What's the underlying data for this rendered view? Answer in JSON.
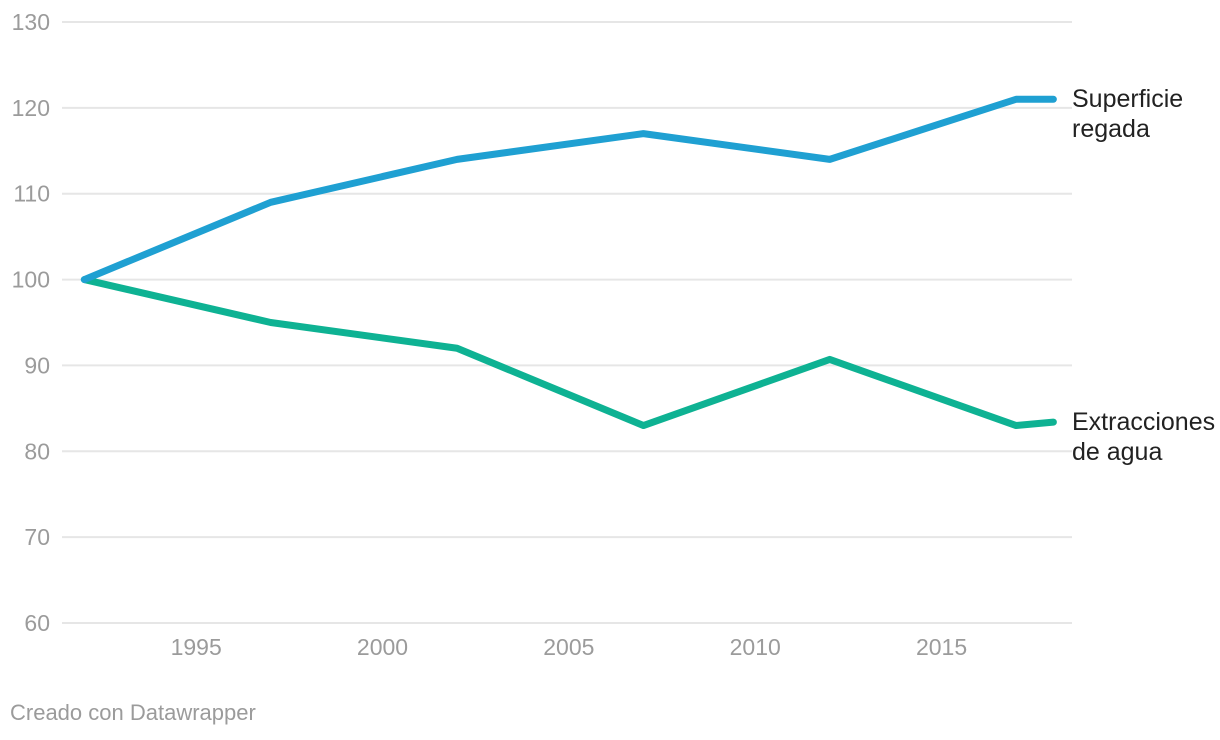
{
  "chart_data": {
    "type": "line",
    "x": [
      1992,
      1997,
      2002,
      2007,
      2012,
      2017,
      2018
    ],
    "series": [
      {
        "name": "Superficie regada",
        "color": "#1fa0d2",
        "values": [
          100,
          109,
          114,
          117,
          114,
          121,
          121
        ]
      },
      {
        "name": "Extracciones de agua",
        "color": "#0eb293",
        "values": [
          100,
          95,
          92,
          83,
          90.7,
          83,
          83.4
        ]
      }
    ],
    "xticks": [
      1995,
      2000,
      2005,
      2010,
      2015
    ],
    "yticks": [
      60,
      70,
      80,
      90,
      100,
      110,
      120,
      130
    ],
    "xlim": [
      1991.4,
      2018.5
    ],
    "ylim": [
      60,
      130
    ],
    "grid": "horizontal-only",
    "legend_position": "labels-right-of-line-ends",
    "title": "",
    "xlabel": "",
    "ylabel": ""
  },
  "footer": {
    "credit": "Creado con Datawrapper"
  },
  "colors": {
    "background": "#ffffff",
    "grid": "#e6e6e6",
    "tick_label": "#9b9b9b",
    "series_label": "#222222",
    "footer": "#9b9b9b"
  }
}
